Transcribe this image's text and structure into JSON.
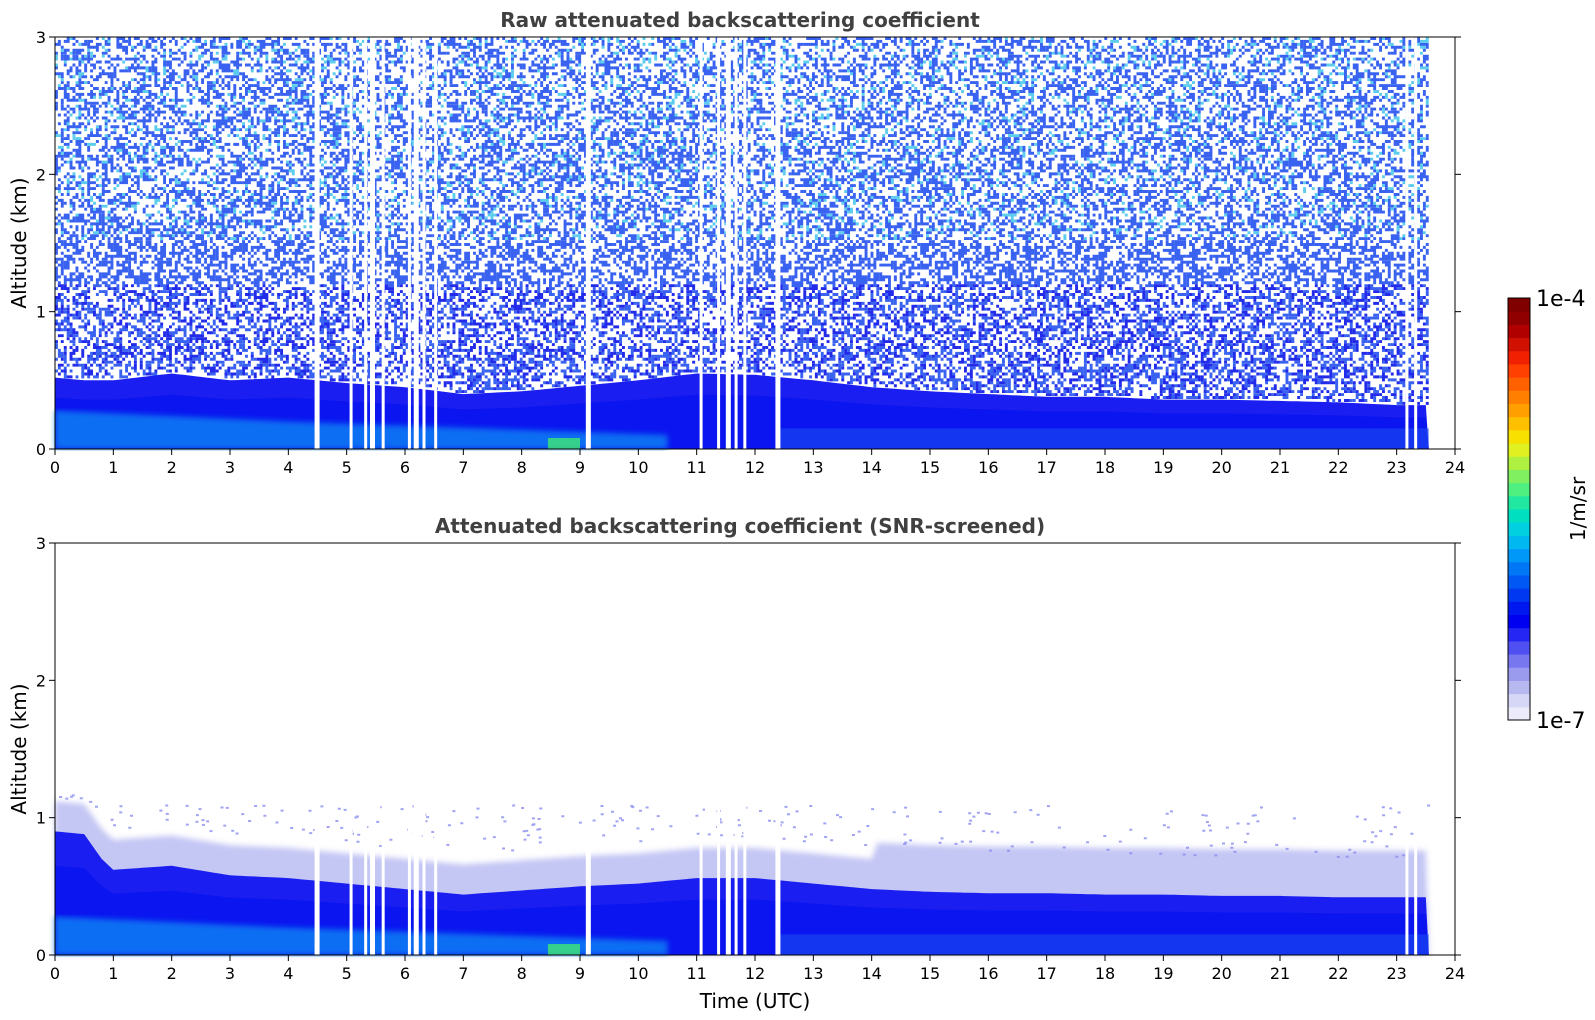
{
  "chart_data": [
    {
      "type": "heatmap",
      "title": "Raw attenuated backscattering coefficient",
      "xlabel": "",
      "ylabel": "Altitude (km)",
      "xlim": [
        0,
        24
      ],
      "ylim": [
        0,
        3
      ],
      "xticks": [
        "0",
        "1",
        "2",
        "3",
        "4",
        "5",
        "6",
        "7",
        "8",
        "9",
        "10",
        "11",
        "12",
        "13",
        "14",
        "15",
        "16",
        "17",
        "18",
        "19",
        "20",
        "21",
        "22",
        "23",
        "24"
      ],
      "yticks": [
        "0",
        "1",
        "2",
        "3"
      ],
      "data_end_time": 23.55,
      "noise_top_km": 3.0,
      "boundary_layer_top_km": [
        [
          0.0,
          0.52
        ],
        [
          0.5,
          0.5
        ],
        [
          1.0,
          0.5
        ],
        [
          2.0,
          0.55
        ],
        [
          3.0,
          0.5
        ],
        [
          4.0,
          0.52
        ],
        [
          5.0,
          0.48
        ],
        [
          6.0,
          0.45
        ],
        [
          7.0,
          0.4
        ],
        [
          8.0,
          0.42
        ],
        [
          9.0,
          0.46
        ],
        [
          10.0,
          0.5
        ],
        [
          11.0,
          0.55
        ],
        [
          12.0,
          0.54
        ],
        [
          13.0,
          0.5
        ],
        [
          14.0,
          0.45
        ],
        [
          15.0,
          0.42
        ],
        [
          16.0,
          0.4
        ],
        [
          17.0,
          0.38
        ],
        [
          18.0,
          0.38
        ],
        [
          19.0,
          0.36
        ],
        [
          20.0,
          0.36
        ],
        [
          21.0,
          0.35
        ],
        [
          22.0,
          0.34
        ],
        [
          23.0,
          0.32
        ],
        [
          23.55,
          0.32
        ]
      ],
      "missing_data_times": [
        4.45,
        5.05,
        5.3,
        5.4,
        5.6,
        6.05,
        6.15,
        6.3,
        6.5,
        9.1,
        11.05,
        11.35,
        11.5,
        11.65,
        11.8,
        12.35,
        23.15,
        23.3
      ]
    },
    {
      "type": "heatmap",
      "title": "Attenuated backscattering coefficient (SNR-screened)",
      "xlabel": "Time (UTC)",
      "ylabel": "Altitude (km)",
      "xlim": [
        0,
        24
      ],
      "ylim": [
        0,
        3
      ],
      "xticks": [
        "0",
        "1",
        "2",
        "3",
        "4",
        "5",
        "6",
        "7",
        "8",
        "9",
        "10",
        "11",
        "12",
        "13",
        "14",
        "15",
        "16",
        "17",
        "18",
        "19",
        "20",
        "21",
        "22",
        "23",
        "24"
      ],
      "yticks": [
        "0",
        "1",
        "2",
        "3"
      ],
      "data_end_time": 23.55,
      "boundary_layer_top_km": [
        [
          0.0,
          0.9
        ],
        [
          0.5,
          0.88
        ],
        [
          0.8,
          0.7
        ],
        [
          1.0,
          0.62
        ],
        [
          2.0,
          0.65
        ],
        [
          3.0,
          0.58
        ],
        [
          4.0,
          0.56
        ],
        [
          5.0,
          0.52
        ],
        [
          6.0,
          0.48
        ],
        [
          7.0,
          0.44
        ],
        [
          8.0,
          0.47
        ],
        [
          9.0,
          0.5
        ],
        [
          10.0,
          0.52
        ],
        [
          11.0,
          0.56
        ],
        [
          12.0,
          0.56
        ],
        [
          13.0,
          0.52
        ],
        [
          14.0,
          0.48
        ],
        [
          15.0,
          0.46
        ],
        [
          16.0,
          0.45
        ],
        [
          17.0,
          0.45
        ],
        [
          18.0,
          0.44
        ],
        [
          19.0,
          0.44
        ],
        [
          20.0,
          0.43
        ],
        [
          21.0,
          0.43
        ],
        [
          22.0,
          0.42
        ],
        [
          23.0,
          0.42
        ],
        [
          23.55,
          0.42
        ]
      ],
      "screened_noise_top_km": 0.85,
      "missing_data_times": [
        4.45,
        5.05,
        5.3,
        5.4,
        5.6,
        6.05,
        6.15,
        6.3,
        6.5,
        9.1,
        11.05,
        11.35,
        11.5,
        11.65,
        11.8,
        12.35,
        23.15,
        23.3
      ]
    }
  ],
  "colorbar": {
    "label": "1/m/sr",
    "max_label": "1e-4",
    "min_label": "1e-7",
    "scale": "log",
    "colors": [
      "#ebebfa",
      "#d6d6f6",
      "#b8b8f0",
      "#9a9aee",
      "#7777f0",
      "#4f4ff2",
      "#2626f4",
      "#0000f0",
      "#0018f0",
      "#0038f2",
      "#0058f4",
      "#0078f6",
      "#0098f8",
      "#00b8f0",
      "#00d0e0",
      "#00e0c0",
      "#20e8a0",
      "#50f080",
      "#80f060",
      "#b0f040",
      "#e0f020",
      "#f8e000",
      "#ffc000",
      "#ffa000",
      "#ff8000",
      "#ff6000",
      "#ff4000",
      "#f02000",
      "#d01000",
      "#b00000",
      "#900000",
      "#800000"
    ]
  }
}
